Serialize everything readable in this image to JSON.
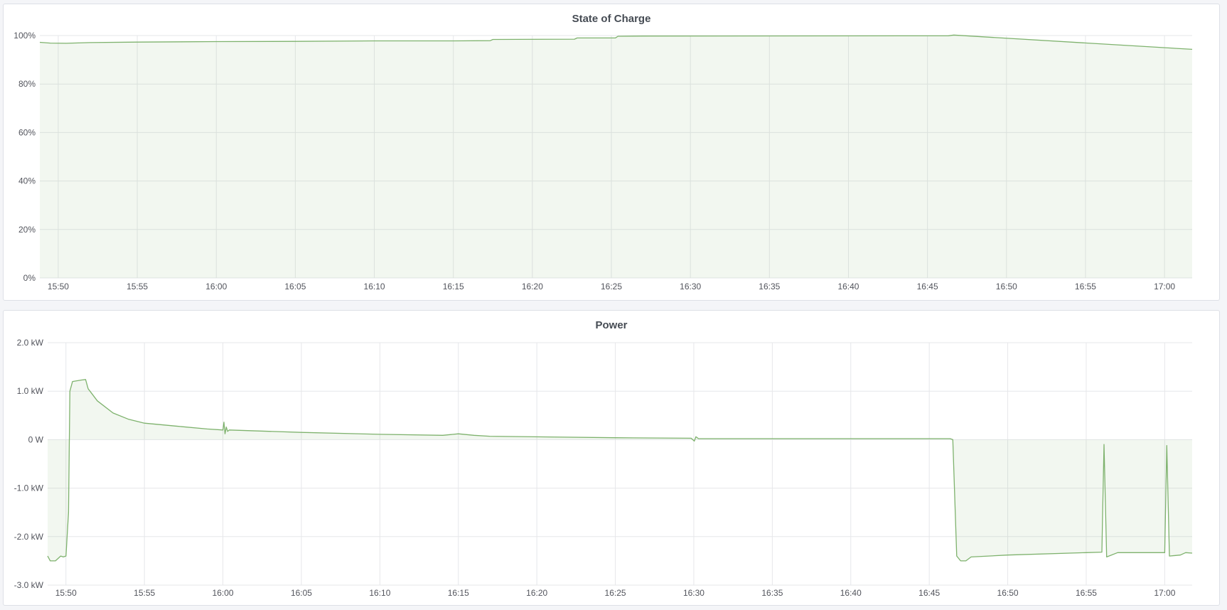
{
  "chart_data": [
    {
      "type": "area",
      "title": "State of Charge",
      "xlabel": "",
      "ylabel": "",
      "x_ticks": [
        "15:50",
        "15:55",
        "16:00",
        "16:05",
        "16:10",
        "16:15",
        "16:20",
        "16:25",
        "16:30",
        "16:35",
        "16:40",
        "16:45",
        "16:50",
        "16:55",
        "17:00"
      ],
      "y_ticks": [
        "0%",
        "20%",
        "40%",
        "60%",
        "80%",
        "100%"
      ],
      "y_tick_values": [
        0,
        20,
        40,
        60,
        80,
        100
      ],
      "xlim": [
        "15:48:50",
        "17:01:45"
      ],
      "ylim": [
        0,
        100
      ],
      "grid": true,
      "line_color": "#7eb26d",
      "fill_color": "rgba(126,178,109,0.1)",
      "series": [
        {
          "x": [
            "15:48:50",
            "15:49:30",
            "15:50:30",
            "15:52:00",
            "15:55:00",
            "16:00:00",
            "16:05:00",
            "16:10:00",
            "16:15:00",
            "16:17:20",
            "16:17:30",
            "16:22:40",
            "16:22:50",
            "16:25:15",
            "16:25:25",
            "16:27:00",
            "16:46:20",
            "16:46:40",
            "17:01:45"
          ],
          "y": [
            97.2,
            96.9,
            96.8,
            97.1,
            97.3,
            97.5,
            97.6,
            97.8,
            97.8,
            97.9,
            98.4,
            98.5,
            99.0,
            99.0,
            99.7,
            99.8,
            99.9,
            100.2,
            94.3
          ]
        }
      ]
    },
    {
      "type": "area",
      "title": "Power",
      "xlabel": "",
      "ylabel": "",
      "x_ticks": [
        "15:50",
        "15:55",
        "16:00",
        "16:05",
        "16:10",
        "16:15",
        "16:20",
        "16:25",
        "16:30",
        "16:35",
        "16:40",
        "16:45",
        "16:50",
        "16:55",
        "17:00"
      ],
      "y_ticks": [
        "-3.0 kW",
        "-2.0 kW",
        "-1.0 kW",
        "0 W",
        "1.0 kW",
        "2.0 kW"
      ],
      "y_tick_values": [
        -3,
        -2,
        -1,
        0,
        1,
        2
      ],
      "xlim": [
        "15:48:50",
        "17:01:45"
      ],
      "ylim": [
        -3,
        2
      ],
      "grid": true,
      "line_color": "#7eb26d",
      "fill_color": "rgba(126,178,109,0.1)",
      "series": [
        {
          "x": [
            "15:48:50",
            "15:49:00",
            "15:49:20",
            "15:49:40",
            "15:49:50",
            "15:50:00",
            "15:50:10",
            "15:50:15",
            "15:50:25",
            "15:51:00",
            "15:51:15",
            "15:51:25",
            "15:52:00",
            "15:53:00",
            "15:54:00",
            "15:55:00",
            "15:57:00",
            "15:59:00",
            "16:00:00",
            "16:00:04",
            "16:00:08",
            "16:00:13",
            "16:00:18",
            "16:00:24",
            "16:05:00",
            "16:10:00",
            "16:14:00",
            "16:15:00",
            "16:16:00",
            "16:17:00",
            "16:25:00",
            "16:29:50",
            "16:30:02",
            "16:30:08",
            "16:30:18",
            "16:46:20",
            "16:46:30",
            "16:46:45",
            "16:47:00",
            "16:47:20",
            "16:47:40",
            "16:50:00",
            "16:55:00",
            "16:56:00",
            "16:56:08",
            "16:56:18",
            "16:57:00",
            "17:00:00",
            "17:00:08",
            "17:00:18",
            "17:01:00",
            "17:01:20",
            "17:01:45"
          ],
          "y": [
            -2.4,
            -2.5,
            -2.5,
            -2.4,
            -2.42,
            -2.4,
            -1.5,
            1.0,
            1.2,
            1.23,
            1.24,
            1.05,
            0.8,
            0.55,
            0.42,
            0.34,
            0.28,
            0.22,
            0.2,
            0.36,
            0.12,
            0.26,
            0.17,
            0.2,
            0.15,
            0.11,
            0.09,
            0.12,
            0.09,
            0.07,
            0.04,
            0.03,
            -0.03,
            0.06,
            0.02,
            0.02,
            0.0,
            -2.4,
            -2.5,
            -2.5,
            -2.42,
            -2.38,
            -2.33,
            -2.32,
            -0.1,
            -2.42,
            -2.33,
            -2.33,
            -0.12,
            -2.4,
            -2.38,
            -2.33,
            -2.34
          ]
        }
      ]
    }
  ]
}
